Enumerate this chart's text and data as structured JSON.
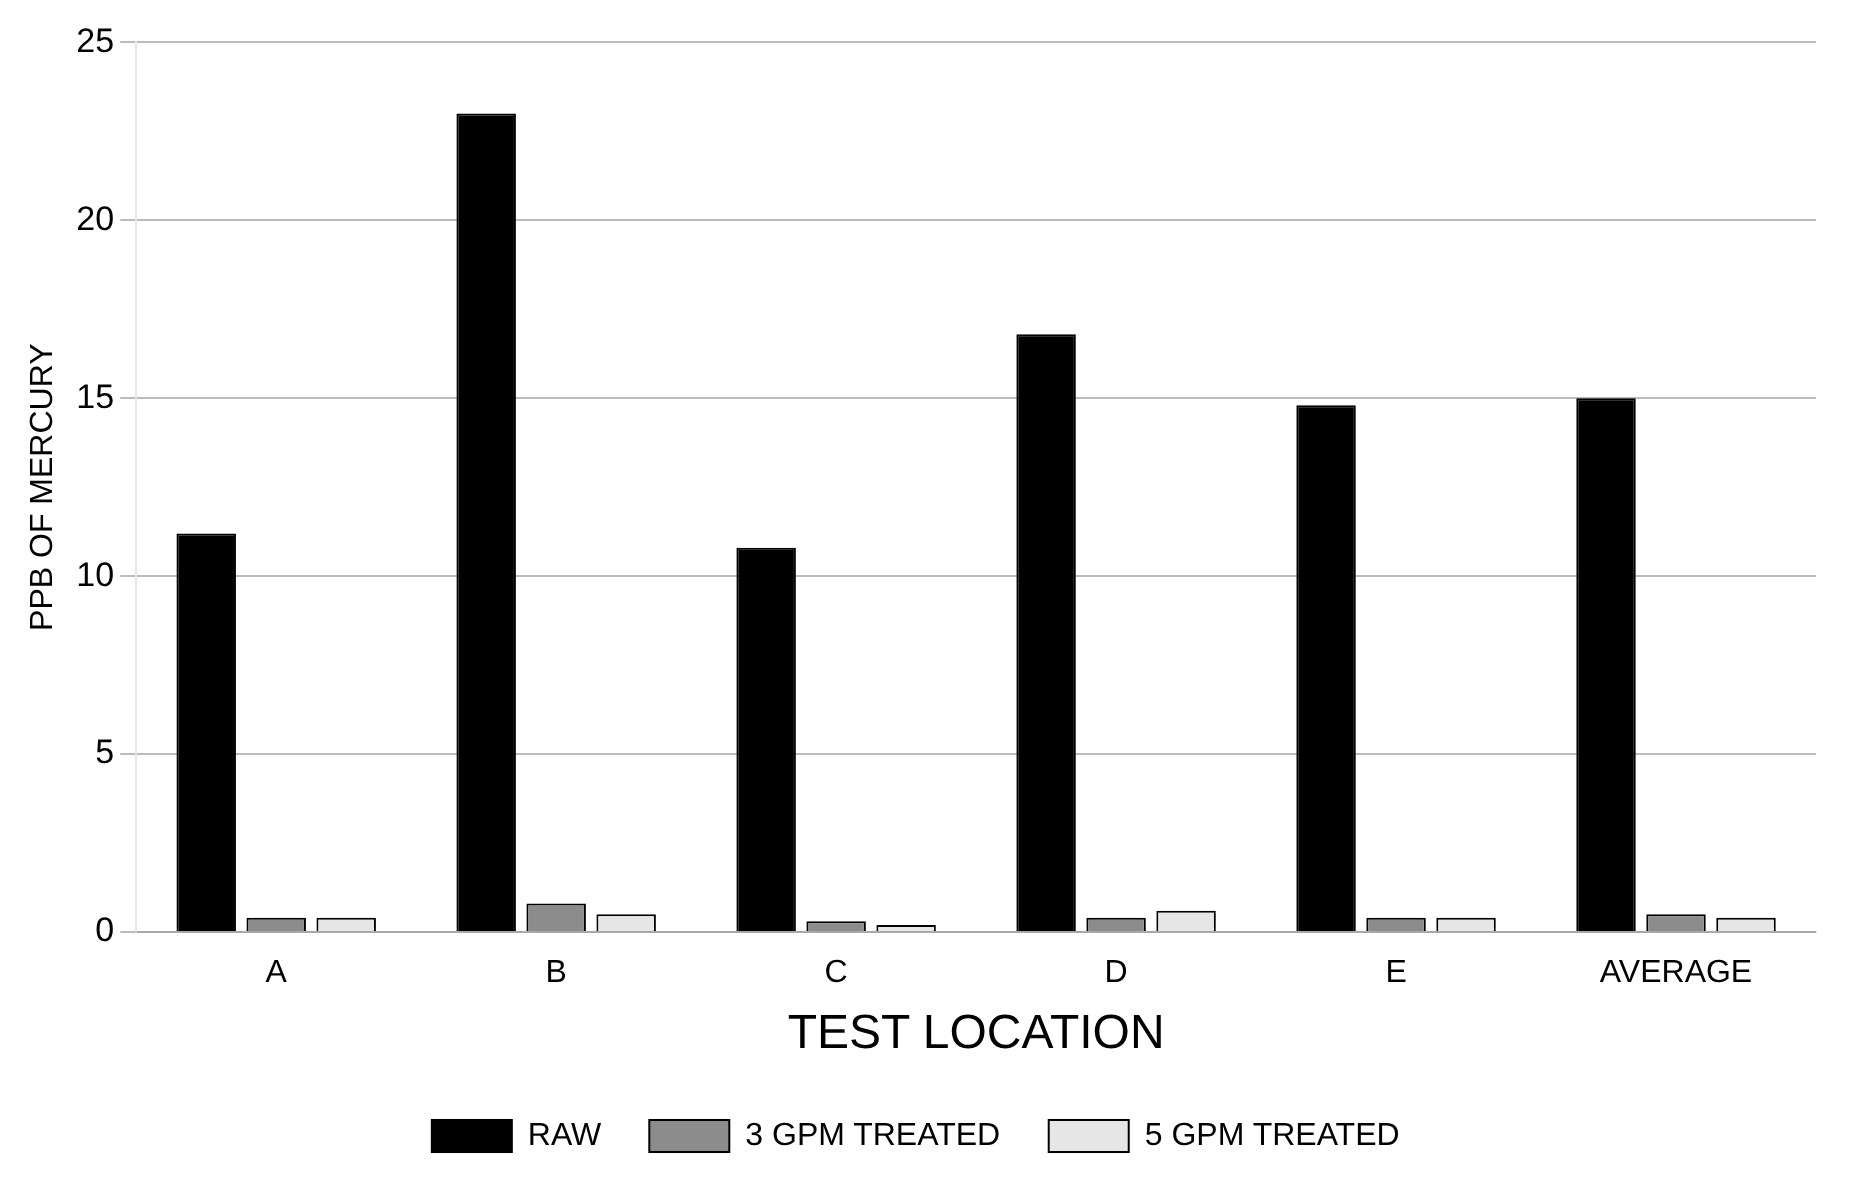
{
  "chart_data": {
    "type": "bar",
    "xlabel": "TEST LOCATION",
    "ylabel": "PPB OF MERCURY",
    "categories": [
      "A",
      "B",
      "C",
      "D",
      "E",
      "AVERAGE"
    ],
    "series": [
      {
        "name": "RAW",
        "color": "#000000",
        "values": [
          11.2,
          23.0,
          10.8,
          16.8,
          14.8,
          15.0
        ]
      },
      {
        "name": "3 GPM TREATED",
        "color": "#8c8c8c",
        "values": [
          0.4,
          0.8,
          0.3,
          0.4,
          0.4,
          0.5
        ]
      },
      {
        "name": "5 GPM TREATED",
        "color": "#e6e6e6",
        "values": [
          0.4,
          0.5,
          0.2,
          0.6,
          0.4,
          0.4
        ]
      }
    ],
    "ylim": [
      0,
      25
    ],
    "yticks": [
      0,
      5,
      10,
      15,
      20,
      25
    ],
    "grid": "y",
    "legend": "bottom"
  }
}
